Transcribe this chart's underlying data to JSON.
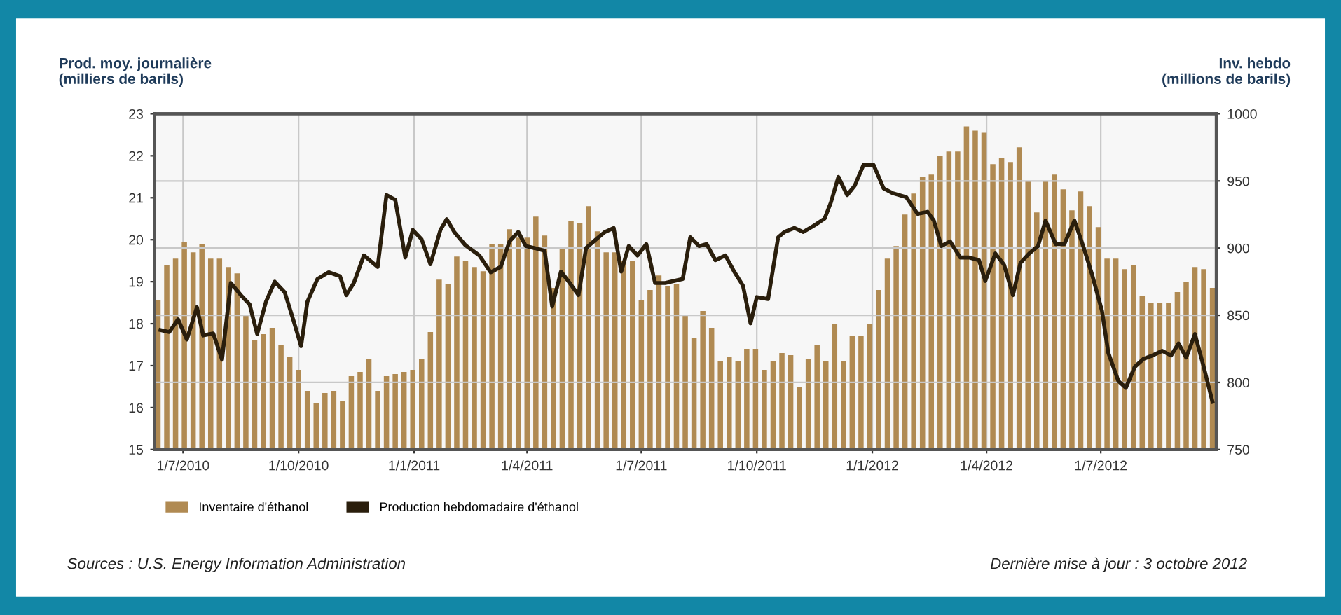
{
  "chart_data": {
    "type": "bar",
    "ylabel": "Prod. moy. journalière\n(milliers de barils)",
    "y2label": "Inv. hebdo\n(millions de barils)",
    "x": [
      "2010-06-11",
      "2010-06-18",
      "2010-06-25",
      "2010-07-02",
      "2010-07-09",
      "2010-07-16",
      "2010-07-23",
      "2010-07-30",
      "2010-08-06",
      "2010-08-13",
      "2010-08-20",
      "2010-08-27",
      "2010-09-03",
      "2010-09-10",
      "2010-09-17",
      "2010-09-24",
      "2010-10-01",
      "2010-10-08",
      "2010-10-15",
      "2010-10-22",
      "2010-10-29",
      "2010-11-05",
      "2010-11-12",
      "2010-11-19",
      "2010-11-26",
      "2010-12-03",
      "2010-12-10",
      "2010-12-17",
      "2010-12-24",
      "2010-12-31",
      "2011-01-07",
      "2011-01-14",
      "2011-01-21",
      "2011-01-28",
      "2011-02-04",
      "2011-02-11",
      "2011-02-18",
      "2011-02-25",
      "2011-03-04",
      "2011-03-11",
      "2011-03-18",
      "2011-03-25",
      "2011-04-01",
      "2011-04-08",
      "2011-04-15",
      "2011-04-22",
      "2011-04-29",
      "2011-05-06",
      "2011-05-13",
      "2011-05-20",
      "2011-05-27",
      "2011-06-03",
      "2011-06-10",
      "2011-06-17",
      "2011-06-24",
      "2011-07-01",
      "2011-07-08",
      "2011-07-15",
      "2011-07-22",
      "2011-07-29",
      "2011-08-05",
      "2011-08-12",
      "2011-08-19",
      "2011-08-26",
      "2011-09-02",
      "2011-09-09",
      "2011-09-16",
      "2011-09-23",
      "2011-09-30",
      "2011-10-07",
      "2011-10-14",
      "2011-10-21",
      "2011-10-28",
      "2011-11-04",
      "2011-11-11",
      "2011-11-18",
      "2011-11-25",
      "2011-12-02",
      "2011-12-09",
      "2011-12-16",
      "2011-12-23",
      "2011-12-30",
      "2012-01-06",
      "2012-01-13",
      "2012-01-20",
      "2012-01-27",
      "2012-02-03",
      "2012-02-10",
      "2012-02-17",
      "2012-02-24",
      "2012-03-02",
      "2012-03-09",
      "2012-03-16",
      "2012-03-23",
      "2012-03-30",
      "2012-04-06",
      "2012-04-13",
      "2012-04-20",
      "2012-04-27",
      "2012-05-04",
      "2012-05-11",
      "2012-05-18",
      "2012-05-25",
      "2012-06-01",
      "2012-06-08",
      "2012-06-15",
      "2012-06-22",
      "2012-06-29",
      "2012-07-06",
      "2012-07-13",
      "2012-07-20",
      "2012-07-27",
      "2012-08-03",
      "2012-08-10",
      "2012-08-17",
      "2012-08-24",
      "2012-08-31",
      "2012-09-07",
      "2012-09-14",
      "2012-09-21",
      "2012-09-28"
    ],
    "series": [
      {
        "name": "Inventaire d'éthanol",
        "color": "#b08a52",
        "values": [
          18.55,
          19.4,
          19.55,
          19.95,
          19.7,
          19.9,
          19.55,
          19.55,
          19.35,
          19.2,
          18.2,
          17.6,
          17.75,
          17.9,
          17.5,
          17.2,
          16.9,
          16.4,
          16.1,
          16.35,
          16.4,
          16.15,
          16.75,
          16.85,
          17.15,
          16.4,
          16.75,
          16.8,
          16.85,
          16.9,
          17.15,
          17.8,
          19.05,
          18.95,
          19.6,
          19.5,
          19.35,
          19.25,
          19.9,
          19.9,
          20.25,
          20.05,
          20.05,
          20.55,
          20.1,
          18.85,
          19.8,
          20.45,
          20.4,
          20.8,
          20.2,
          19.7,
          19.7,
          19.5,
          19.5,
          18.55,
          18.8,
          19.15,
          18.9,
          18.95,
          18.2,
          17.65,
          18.3,
          17.9,
          17.1,
          17.2,
          17.1,
          17.4,
          17.4,
          16.9,
          17.1,
          17.3,
          17.25,
          16.5,
          17.15,
          17.5,
          17.1,
          18.0,
          17.1,
          17.7,
          17.7,
          18.0,
          18.8,
          19.55,
          19.85,
          20.6,
          21.1,
          21.5,
          21.55,
          22.0,
          22.1,
          22.1,
          22.7,
          22.6,
          22.55,
          21.8,
          21.95,
          21.85,
          22.2,
          21.4,
          20.65,
          21.4,
          21.55,
          21.2,
          20.7,
          21.15,
          20.8,
          20.3,
          19.55,
          19.55,
          19.3,
          19.4,
          18.65,
          18.5,
          18.5,
          18.5,
          18.75,
          19.0,
          19.35,
          19.3,
          18.85
        ]
      },
      {
        "name": "Production hebdomadaire d'éthanol",
        "type": "line",
        "axis": "y2",
        "color": "#2a1e0c",
        "x": [
          "2010-06-13",
          "2010-06-20",
          "2010-06-27",
          "2010-07-04",
          "2010-07-12",
          "2010-07-17",
          "2010-07-25",
          "2010-08-01",
          "2010-08-08",
          "2010-08-16",
          "2010-08-23",
          "2010-08-29",
          "2010-09-05",
          "2010-09-12",
          "2010-09-20",
          "2010-09-27",
          "2010-10-03",
          "2010-10-08",
          "2010-10-16",
          "2010-10-25",
          "2010-11-03",
          "2010-11-08",
          "2010-11-14",
          "2010-11-22",
          "2010-12-03",
          "2010-12-10",
          "2010-12-17",
          "2010-12-25",
          "2010-12-31",
          "2011-01-07",
          "2011-01-14",
          "2011-01-22",
          "2011-01-27",
          "2011-02-02",
          "2011-02-11",
          "2011-02-22",
          "2011-03-03",
          "2011-03-11",
          "2011-03-18",
          "2011-03-25",
          "2011-03-31",
          "2011-04-07",
          "2011-04-15",
          "2011-04-21",
          "2011-04-28",
          "2011-05-05",
          "2011-05-12",
          "2011-05-18",
          "2011-05-26",
          "2011-06-02",
          "2011-06-09",
          "2011-06-15",
          "2011-06-21",
          "2011-06-28",
          "2011-07-05",
          "2011-07-12",
          "2011-07-20",
          "2011-08-03",
          "2011-08-09",
          "2011-08-16",
          "2011-08-22",
          "2011-08-29",
          "2011-09-06",
          "2011-09-13",
          "2011-09-20",
          "2011-09-26",
          "2011-10-01",
          "2011-10-10",
          "2011-10-18",
          "2011-10-23",
          "2011-10-31",
          "2011-11-07",
          "2011-11-16",
          "2011-11-24",
          "2011-11-29",
          "2011-12-05",
          "2011-12-12",
          "2011-12-18",
          "2011-12-25",
          "2012-01-02",
          "2012-01-10",
          "2012-01-17",
          "2012-01-28",
          "2012-02-06",
          "2012-02-14",
          "2012-02-19",
          "2012-02-25",
          "2012-03-03",
          "2012-03-11",
          "2012-03-18",
          "2012-03-26",
          "2012-03-31",
          "2012-04-08",
          "2012-04-15",
          "2012-04-22",
          "2012-04-28",
          "2012-05-05",
          "2012-05-12",
          "2012-05-18",
          "2012-05-26",
          "2012-06-02",
          "2012-06-10",
          "2012-06-17",
          "2012-06-24",
          "2012-07-02",
          "2012-07-07",
          "2012-07-15",
          "2012-07-21",
          "2012-07-28",
          "2012-08-04",
          "2012-08-11",
          "2012-08-19",
          "2012-08-26",
          "2012-09-01",
          "2012-09-07",
          "2012-09-14",
          "2012-09-21",
          "2012-09-28"
        ],
        "values": [
          839,
          837.5,
          847,
          832,
          856,
          835,
          836.5,
          817,
          874,
          865,
          858,
          836,
          860,
          875,
          867,
          846,
          827,
          860,
          877,
          882,
          879,
          865,
          874,
          894.5,
          886,
          939.5,
          936,
          893,
          913.5,
          906.5,
          888,
          913.5,
          921.5,
          912,
          902,
          894.5,
          882,
          886,
          905,
          912,
          901.5,
          900,
          898,
          856.5,
          882.5,
          874,
          865,
          900,
          906.5,
          912,
          915,
          882.5,
          901.5,
          894.5,
          903,
          874,
          874,
          877,
          908,
          901.5,
          903,
          891,
          894.5,
          882.5,
          872,
          844,
          863.5,
          862,
          908,
          912,
          915,
          912,
          917,
          922,
          934,
          953,
          939.5,
          946.5,
          962,
          962,
          944.5,
          941,
          938,
          925.5,
          927,
          920.5,
          901.5,
          905,
          893,
          893,
          891,
          875.5,
          896,
          887.5,
          865,
          889,
          896,
          901.5,
          920.5,
          903,
          903,
          920.5,
          901.5,
          880.5,
          853,
          822,
          801,
          796,
          811.5,
          817.5,
          820,
          823.5,
          820,
          829,
          818.5,
          836,
          811.5,
          785.5
        ]
      }
    ],
    "xlim": [
      "2010-06-08",
      "2012-10-01"
    ],
    "xticks": [
      {
        "value": "2010-07-01",
        "label": "1/7/2010"
      },
      {
        "value": "2010-10-01",
        "label": "1/10/2010"
      },
      {
        "value": "2011-01-01",
        "label": "1/1/2011"
      },
      {
        "value": "2011-04-01",
        "label": "1/4/2011"
      },
      {
        "value": "2011-07-01",
        "label": "1/7/2011"
      },
      {
        "value": "2011-10-01",
        "label": "1/10/2011"
      },
      {
        "value": "2012-01-01",
        "label": "1/1/2012"
      },
      {
        "value": "2012-04-01",
        "label": "1/4/2012"
      },
      {
        "value": "2012-07-01",
        "label": "1/7/2012"
      }
    ],
    "ylim": [
      15,
      23
    ],
    "yticks": [
      15,
      16,
      17,
      18,
      19,
      20,
      21,
      22,
      23
    ],
    "y2lim": [
      750,
      1000
    ],
    "y2ticks": [
      750,
      800,
      850,
      900,
      950,
      1000
    ],
    "grid": true,
    "legend": "bottom",
    "annotations": [
      "Sources : U.S. Energy Information Administration",
      "Dernière mise à jour : 3 octobre 2012"
    ]
  }
}
